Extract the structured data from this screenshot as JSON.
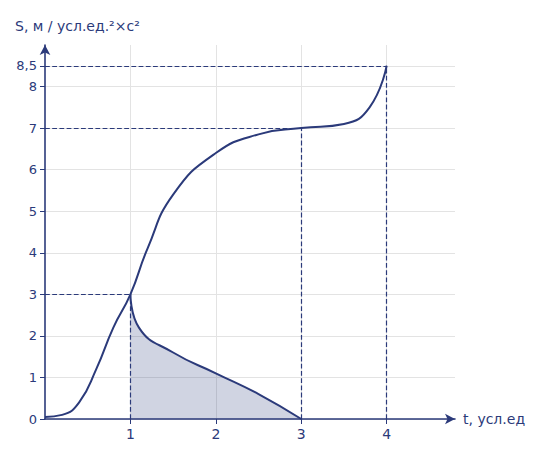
{
  "chart_data": {
    "type": "line",
    "x_label": "t, усл.ед",
    "y_label": "S, м / усл.ед.²×с²",
    "xlim": [
      0,
      4.8
    ],
    "ylim": [
      0,
      9
    ],
    "xticks": [
      1,
      2,
      3,
      4
    ],
    "yticks": [
      0,
      1,
      2,
      3,
      4,
      5,
      6,
      7,
      8,
      {
        "value": 8.5,
        "label": "8,5"
      }
    ],
    "grid": true,
    "color": "#2b3a7a",
    "series": [
      {
        "type": "line",
        "line_style": "solid",
        "x": [
          0,
          0.2,
          0.4,
          0.6,
          0.8,
          1,
          1.2,
          1.5,
          2,
          2.5,
          3,
          3.5,
          3.8,
          4
        ],
        "values": [
          0.05,
          0.1,
          0.4,
          1.2,
          2.2,
          3,
          4.1,
          5.4,
          6.4,
          6.85,
          7,
          7.1,
          7.5,
          8.5
        ]
      },
      {
        "type": "area",
        "line_style": "solid",
        "x": [
          1,
          1.1,
          1.5,
          2,
          2.5,
          3
        ],
        "values": [
          3,
          2.2,
          1.6,
          1.1,
          0.6,
          0
        ]
      }
    ],
    "guides": [
      {
        "x": 1,
        "y": 3
      },
      {
        "x": 3,
        "y": 7
      },
      {
        "x": 4,
        "y": 8.5
      }
    ]
  }
}
